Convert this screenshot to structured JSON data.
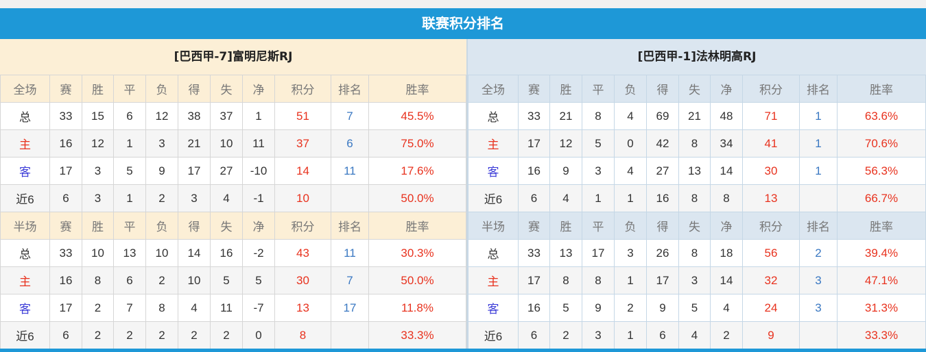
{
  "title": "联赛积分排名",
  "headers_full": [
    "全场",
    "赛",
    "胜",
    "平",
    "负",
    "得",
    "失",
    "净",
    "积分",
    "排名",
    "胜率"
  ],
  "headers_half": [
    "半场",
    "赛",
    "胜",
    "平",
    "负",
    "得",
    "失",
    "净",
    "积分",
    "排名",
    "胜率"
  ],
  "teams": [
    {
      "name": "[巴西甲-7]富明尼斯RJ",
      "full": [
        [
          "总",
          "33",
          "15",
          "6",
          "12",
          "38",
          "37",
          "1",
          "51",
          "7",
          "45.5%"
        ],
        [
          "主",
          "16",
          "12",
          "1",
          "3",
          "21",
          "10",
          "11",
          "37",
          "6",
          "75.0%"
        ],
        [
          "客",
          "17",
          "3",
          "5",
          "9",
          "17",
          "27",
          "-10",
          "14",
          "11",
          "17.6%"
        ],
        [
          "近6",
          "6",
          "3",
          "1",
          "2",
          "3",
          "4",
          "-1",
          "10",
          "",
          "50.0%"
        ]
      ],
      "half": [
        [
          "总",
          "33",
          "10",
          "13",
          "10",
          "14",
          "16",
          "-2",
          "43",
          "11",
          "30.3%"
        ],
        [
          "主",
          "16",
          "8",
          "6",
          "2",
          "10",
          "5",
          "5",
          "30",
          "7",
          "50.0%"
        ],
        [
          "客",
          "17",
          "2",
          "7",
          "8",
          "4",
          "11",
          "-7",
          "13",
          "17",
          "11.8%"
        ],
        [
          "近6",
          "6",
          "2",
          "2",
          "2",
          "2",
          "2",
          "0",
          "8",
          "",
          "33.3%"
        ]
      ]
    },
    {
      "name": "[巴西甲-1]法林明高RJ",
      "full": [
        [
          "总",
          "33",
          "21",
          "8",
          "4",
          "69",
          "21",
          "48",
          "71",
          "1",
          "63.6%"
        ],
        [
          "主",
          "17",
          "12",
          "5",
          "0",
          "42",
          "8",
          "34",
          "41",
          "1",
          "70.6%"
        ],
        [
          "客",
          "16",
          "9",
          "3",
          "4",
          "27",
          "13",
          "14",
          "30",
          "1",
          "56.3%"
        ],
        [
          "近6",
          "6",
          "4",
          "1",
          "1",
          "16",
          "8",
          "8",
          "13",
          "",
          "66.7%"
        ]
      ],
      "half": [
        [
          "总",
          "33",
          "13",
          "17",
          "3",
          "26",
          "8",
          "18",
          "56",
          "2",
          "39.4%"
        ],
        [
          "主",
          "17",
          "8",
          "8",
          "1",
          "17",
          "3",
          "14",
          "32",
          "3",
          "47.1%"
        ],
        [
          "客",
          "16",
          "5",
          "9",
          "2",
          "9",
          "5",
          "4",
          "24",
          "3",
          "31.3%"
        ],
        [
          "近6",
          "6",
          "2",
          "3",
          "1",
          "6",
          "4",
          "2",
          "9",
          "",
          "33.3%"
        ]
      ]
    }
  ],
  "colors": {
    "accent": "#1e98d7",
    "points": "#e8321e",
    "rank": "#3a78c2",
    "home": "#e8321e",
    "away": "#3d3dd8"
  }
}
